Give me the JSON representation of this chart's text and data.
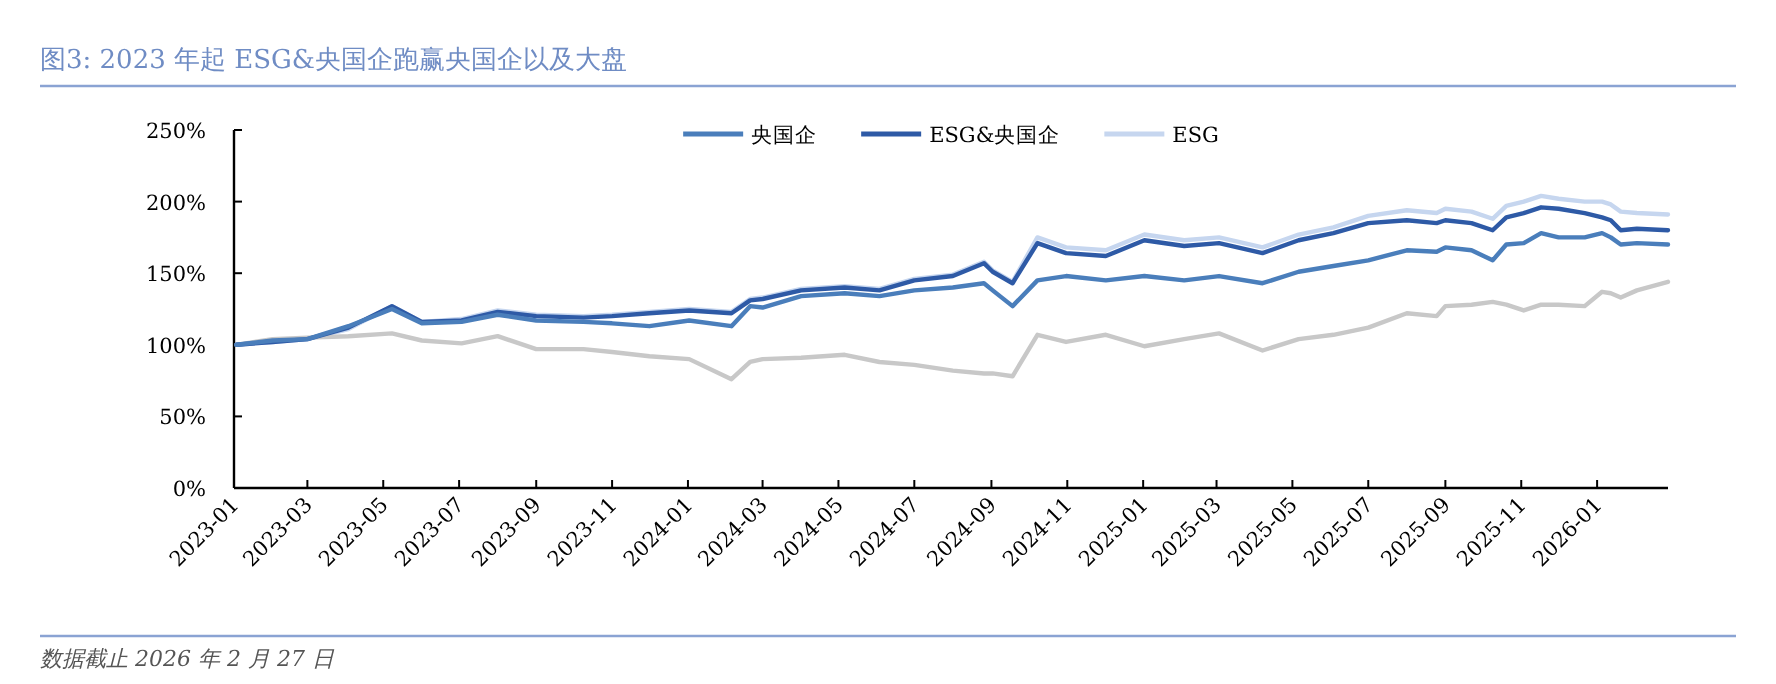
{
  "chart_data": {
    "type": "line",
    "title": "图3: 2023 年起 ESG&央国企跑赢央国企以及大盘",
    "annotations": [
      "数据截止 2026 年 2 月 27 日"
    ],
    "legend": "top",
    "x": [
      "2023-01-03",
      "2023-02-01",
      "2023-03-01",
      "2023-04-03",
      "2023-05-08",
      "2023-06-01",
      "2023-07-03",
      "2023-08-01",
      "2023-09-01",
      "2023-10-09",
      "2023-11-01",
      "2023-12-01",
      "2024-01-02",
      "2024-02-05",
      "2024-02-20",
      "2024-03-01",
      "2024-04-01",
      "2024-05-06",
      "2024-06-03",
      "2024-07-01",
      "2024-08-01",
      "2024-08-26",
      "2024-09-02",
      "2024-09-18",
      "2024-10-08",
      "2024-10-31",
      "2024-12-02",
      "2025-01-02",
      "2025-02-03",
      "2025-03-03",
      "2025-04-07",
      "2025-05-06",
      "2025-06-03",
      "2025-07-01",
      "2025-08-01",
      "2025-08-25",
      "2025-09-01",
      "2025-09-22",
      "2025-10-09",
      "2025-10-20",
      "2025-11-03",
      "2025-11-17",
      "2025-12-01",
      "2025-12-22",
      "2026-01-05",
      "2026-01-12",
      "2026-01-20",
      "2026-02-02",
      "2026-02-27"
    ],
    "series": [
      {
        "name": "央国企",
        "color": "#4a7ebb",
        "values": [
          100,
          103,
          104,
          113,
          125,
          115,
          116,
          121,
          117,
          116,
          115,
          113,
          117,
          113,
          127,
          126,
          134,
          136,
          134,
          138,
          140,
          143,
          138,
          127,
          145,
          148,
          145,
          148,
          145,
          148,
          143,
          151,
          155,
          159,
          166,
          165,
          168,
          166,
          159,
          170,
          171,
          178,
          175,
          175,
          178,
          175,
          170,
          171,
          170
        ]
      },
      {
        "name": "ESG&央国企",
        "color": "#2e5aa6",
        "values": [
          100,
          102,
          104,
          112,
          127,
          116,
          117,
          123,
          120,
          119,
          120,
          122,
          124,
          122,
          131,
          132,
          138,
          140,
          138,
          145,
          148,
          157,
          151,
          143,
          171,
          164,
          162,
          173,
          169,
          171,
          164,
          173,
          178,
          185,
          187,
          185,
          187,
          185,
          180,
          189,
          192,
          196,
          195,
          192,
          189,
          187,
          180,
          181,
          180
        ]
      },
      {
        "color": "#c8c8c8",
        "values": [
          100,
          104,
          105,
          106,
          108,
          103,
          101,
          106,
          97,
          97,
          95,
          92,
          90,
          76,
          88,
          90,
          91,
          93,
          88,
          86,
          82,
          80,
          80,
          78,
          107,
          102,
          107,
          99,
          104,
          108,
          96,
          104,
          107,
          112,
          122,
          120,
          127,
          128,
          130,
          128,
          124,
          128,
          128,
          127,
          137,
          136,
          133,
          138,
          144
        ]
      },
      {
        "name": "ESG",
        "color": "#c6d6ef",
        "values": [
          100,
          102,
          104,
          111,
          127,
          116,
          118,
          124,
          121,
          120,
          121,
          123,
          125,
          123,
          132,
          133,
          139,
          141,
          139,
          146,
          149,
          158,
          152,
          144,
          175,
          168,
          166,
          177,
          173,
          175,
          168,
          177,
          182,
          190,
          194,
          192,
          195,
          193,
          188,
          197,
          200,
          204,
          202,
          200,
          200,
          198,
          193,
          192,
          191
        ]
      }
    ],
    "xlim": [
      "2023-01-01",
      "2026-02-27"
    ],
    "xticks": [
      "2023-01",
      "2023-03",
      "2023-05",
      "2023-07",
      "2023-09",
      "2023-11",
      "2024-01",
      "2024-03",
      "2024-05",
      "2024-07",
      "2024-09",
      "2024-11",
      "2025-01",
      "2025-03",
      "2025-05",
      "2025-07",
      "2025-09",
      "2025-11",
      "2026-01"
    ],
    "ylim": [
      0,
      250
    ],
    "yticks": [
      {
        "value": 0,
        "label": "0%"
      },
      {
        "value": 50,
        "label": "50%"
      },
      {
        "value": 100,
        "label": "100%"
      },
      {
        "value": 150,
        "label": "150%"
      },
      {
        "value": 200,
        "label": "200%"
      },
      {
        "value": 250,
        "label": "250%"
      }
    ]
  }
}
